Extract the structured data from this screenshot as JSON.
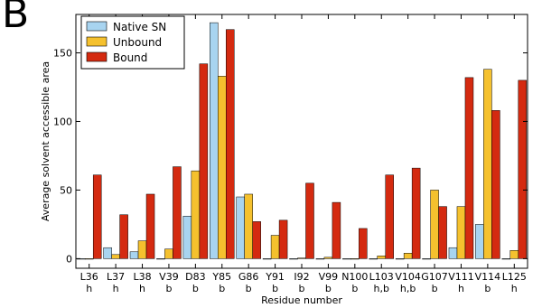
{
  "panel_label": "B",
  "chart_data": {
    "type": "bar",
    "title": "",
    "xlabel": "Residue number",
    "ylabel": "Average solvent accessible area",
    "ylim": [
      -7,
      178
    ],
    "yticks": [
      0,
      50,
      100,
      150
    ],
    "grid": false,
    "legend_position": "top-left",
    "categories": [
      "L36",
      "L37",
      "L38",
      "V39",
      "D83",
      "Y85",
      "G86",
      "Y91",
      "I92",
      "V99",
      "N100",
      "L103",
      "V104",
      "G107",
      "V111",
      "V114",
      "L125"
    ],
    "sublabels": [
      "h",
      "h",
      "h",
      "b",
      "b",
      "b",
      "b",
      "b",
      "b",
      "b",
      "b",
      "h,b",
      "h,b",
      "b",
      "h",
      "b",
      "h"
    ],
    "series": [
      {
        "name": "Native SN",
        "color": "#a8d4f0",
        "values": [
          0,
          8,
          5,
          0,
          31,
          172,
          45,
          0,
          0,
          0,
          0,
          0,
          0,
          0,
          8,
          25,
          0
        ]
      },
      {
        "name": "Unbound",
        "color": "#f5c12e",
        "values": [
          0,
          3,
          13,
          7,
          64,
          133,
          47,
          17,
          0.5,
          1,
          0,
          2,
          4,
          50,
          38,
          138,
          6
        ]
      },
      {
        "name": "Bound",
        "color": "#d42a10",
        "values": [
          61,
          32,
          47,
          67,
          142,
          167,
          27,
          28,
          55,
          41,
          22,
          61,
          66,
          38,
          132,
          108,
          130
        ]
      }
    ]
  }
}
